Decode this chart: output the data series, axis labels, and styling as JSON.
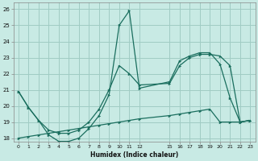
{
  "xlabel": "Humidex (Indice chaleur)",
  "bg_color": "#c8eae4",
  "grid_color": "#a0ccc4",
  "line_color": "#1a6e5e",
  "xlim": [
    -0.5,
    23.5
  ],
  "ylim": [
    17.8,
    26.4
  ],
  "yticks": [
    18,
    19,
    20,
    21,
    22,
    23,
    24,
    25,
    26
  ],
  "xtick_vals": [
    0,
    1,
    2,
    3,
    4,
    5,
    6,
    7,
    8,
    9,
    10,
    11,
    12,
    15,
    16,
    17,
    18,
    19,
    20,
    21,
    22,
    23
  ],
  "xtick_labels": [
    "0",
    "1",
    "2",
    "3",
    "4",
    "5",
    "6",
    "7",
    "8",
    "9",
    "10",
    "11",
    "12",
    "15",
    "16",
    "17",
    "18",
    "19",
    "20",
    "21",
    "22",
    "23"
  ],
  "line_main_x": [
    0,
    1,
    2,
    3,
    4,
    5,
    6,
    7,
    8,
    9,
    10,
    11,
    12,
    15,
    16,
    17,
    18,
    19,
    20,
    21,
    22,
    23
  ],
  "line_main_y": [
    20.9,
    19.9,
    19.1,
    18.2,
    17.8,
    17.8,
    18.0,
    18.6,
    19.4,
    20.7,
    25.0,
    25.9,
    21.1,
    21.5,
    22.8,
    23.1,
    23.3,
    23.3,
    22.6,
    20.5,
    19.0,
    19.1
  ],
  "line_mid_x": [
    0,
    1,
    2,
    3,
    4,
    5,
    6,
    7,
    8,
    9,
    10,
    11,
    12,
    15,
    16,
    17,
    18,
    19,
    20,
    21,
    22,
    23
  ],
  "line_mid_y": [
    20.9,
    19.9,
    19.1,
    18.5,
    18.3,
    18.3,
    18.5,
    19.0,
    19.8,
    21.0,
    22.5,
    22.0,
    21.3,
    21.4,
    22.5,
    23.0,
    23.2,
    23.2,
    23.1,
    22.5,
    19.0,
    19.1
  ],
  "line_flat_x": [
    0,
    1,
    2,
    3,
    4,
    5,
    6,
    7,
    8,
    9,
    10,
    11,
    12,
    15,
    16,
    17,
    18,
    19,
    20,
    21,
    22,
    23
  ],
  "line_flat_y": [
    18.0,
    18.1,
    18.2,
    18.3,
    18.4,
    18.5,
    18.6,
    18.7,
    18.8,
    18.9,
    19.0,
    19.1,
    19.2,
    19.4,
    19.5,
    19.6,
    19.7,
    19.8,
    19.0,
    19.0,
    19.0,
    19.1
  ]
}
